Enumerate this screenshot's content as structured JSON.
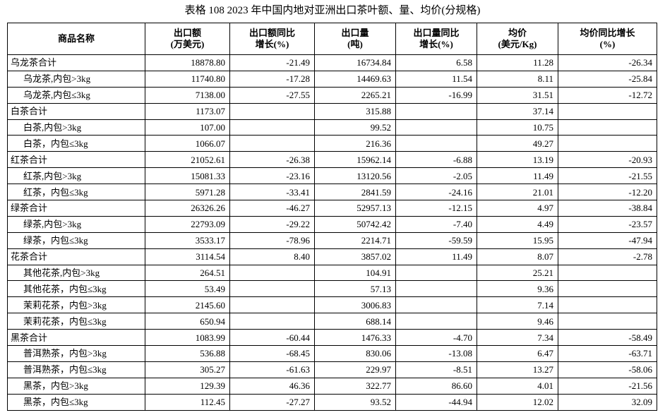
{
  "title": "表格 108 2023 年中国内地对亚洲出口茶叶额、量、均价(分规格)",
  "table": {
    "columns": [
      [
        "商品名称"
      ],
      [
        "出口额",
        "(万美元)"
      ],
      [
        "出口额同比",
        "增长(%)"
      ],
      [
        "出口量",
        "(吨)"
      ],
      [
        "出口量同比",
        "增长(%)"
      ],
      [
        "均价",
        "(美元/Kg)"
      ],
      [
        "均价同比增长",
        "(%)"
      ]
    ],
    "rows": [
      [
        "乌龙茶合计",
        "18878.80",
        "-21.49",
        "16734.84",
        "6.58",
        "11.28",
        "-26.34"
      ],
      [
        "乌龙茶,内包>3kg",
        "11740.80",
        "-17.28",
        "14469.63",
        "11.54",
        "8.11",
        "-25.84"
      ],
      [
        "乌龙茶,内包≤3kg",
        "7138.00",
        "-27.55",
        "2265.21",
        "-16.99",
        "31.51",
        "-12.72"
      ],
      [
        "白茶合计",
        "1173.07",
        null,
        "315.88",
        null,
        "37.14",
        null
      ],
      [
        "白茶,内包>3kg",
        "107.00",
        null,
        "99.52",
        null,
        "10.75",
        null
      ],
      [
        "白茶，内包≤3kg",
        "1066.07",
        null,
        "216.36",
        null,
        "49.27",
        null
      ],
      [
        "红茶合计",
        "21052.61",
        "-26.38",
        "15962.14",
        "-6.88",
        "13.19",
        "-20.93"
      ],
      [
        "红茶,内包>3kg",
        "15081.33",
        "-23.16",
        "13120.56",
        "-2.05",
        "11.49",
        "-21.55"
      ],
      [
        "红茶，内包≤3kg",
        "5971.28",
        "-33.41",
        "2841.59",
        "-24.16",
        "21.01",
        "-12.20"
      ],
      [
        "绿茶合计",
        "26326.26",
        "-46.27",
        "52957.13",
        "-12.15",
        "4.97",
        "-38.84"
      ],
      [
        "绿茶,内包>3kg",
        "22793.09",
        "-29.22",
        "50742.42",
        "-7.40",
        "4.49",
        "-23.57"
      ],
      [
        "绿茶，内包≤3kg",
        "3533.17",
        "-78.96",
        "2214.71",
        "-59.59",
        "15.95",
        "-47.94"
      ],
      [
        "花茶合计",
        "3114.54",
        "8.40",
        "3857.02",
        "11.49",
        "8.07",
        "-2.78"
      ],
      [
        "其他花茶,内包>3kg",
        "264.51",
        null,
        "104.91",
        null,
        "25.21",
        null
      ],
      [
        "其他花茶，内包≤3kg",
        "53.49",
        null,
        "57.13",
        null,
        "9.36",
        null
      ],
      [
        "茉莉花茶，内包>3kg",
        "2145.60",
        null,
        "3006.83",
        null,
        "7.14",
        null
      ],
      [
        "茉莉花茶，内包≤3kg",
        "650.94",
        null,
        "688.14",
        null,
        "9.46",
        null
      ],
      [
        "黑茶合计",
        "1083.99",
        "-60.44",
        "1476.33",
        "-4.70",
        "7.34",
        "-58.49"
      ],
      [
        "普洱熟茶，内包>3kg",
        "536.88",
        "-68.45",
        "830.06",
        "-13.08",
        "6.47",
        "-63.71"
      ],
      [
        "普洱熟茶，内包≤3kg",
        "305.27",
        "-61.63",
        "229.97",
        "-8.51",
        "13.27",
        "-58.06"
      ],
      [
        "黑茶，内包>3kg",
        "129.39",
        "46.36",
        "322.77",
        "86.60",
        "4.01",
        "-21.56"
      ],
      [
        "黑茶，内包≤3kg",
        "112.45",
        "-27.27",
        "93.52",
        "-44.94",
        "12.02",
        "32.09"
      ]
    ]
  }
}
